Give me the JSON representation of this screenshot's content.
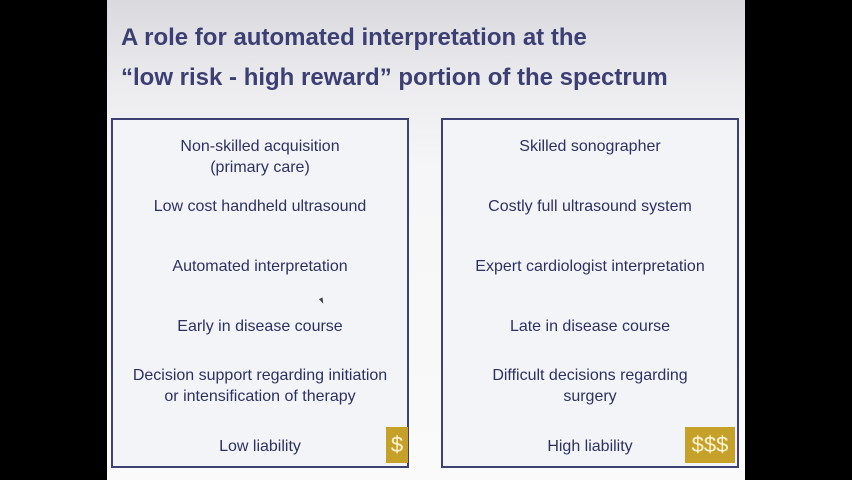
{
  "slide": {
    "title_line1": "A role for automated interpretation at the",
    "title_line2": "“low risk - high reward” portion of the spectrum",
    "left_panel": {
      "items": [
        {
          "line1": "Non-skilled acquisition",
          "line2": "(primary care)"
        },
        {
          "line1": "Low cost handheld ultrasound"
        },
        {
          "line1": "Automated interpretation"
        },
        {
          "line1": "Early in disease course"
        },
        {
          "line1": "Decision support regarding initiation",
          "line2": "or intensification of therapy"
        },
        {
          "line1": "Low liability"
        }
      ],
      "money_icon": "$"
    },
    "right_panel": {
      "items": [
        {
          "line1": "Skilled sonographer"
        },
        {
          "line1": "Costly full ultrasound system"
        },
        {
          "line1": "Expert cardiologist interpretation"
        },
        {
          "line1": "Late in disease course"
        },
        {
          "line1": "Difficult decisions regarding",
          "line2": "surgery"
        },
        {
          "line1": "High liability"
        }
      ],
      "money_icon": "$$$"
    },
    "colors": {
      "title": "#3b3f73",
      "panel_border": "#3d4072",
      "text": "#2d3161",
      "money_badge": "#c6a12a",
      "background": "#000000"
    }
  }
}
